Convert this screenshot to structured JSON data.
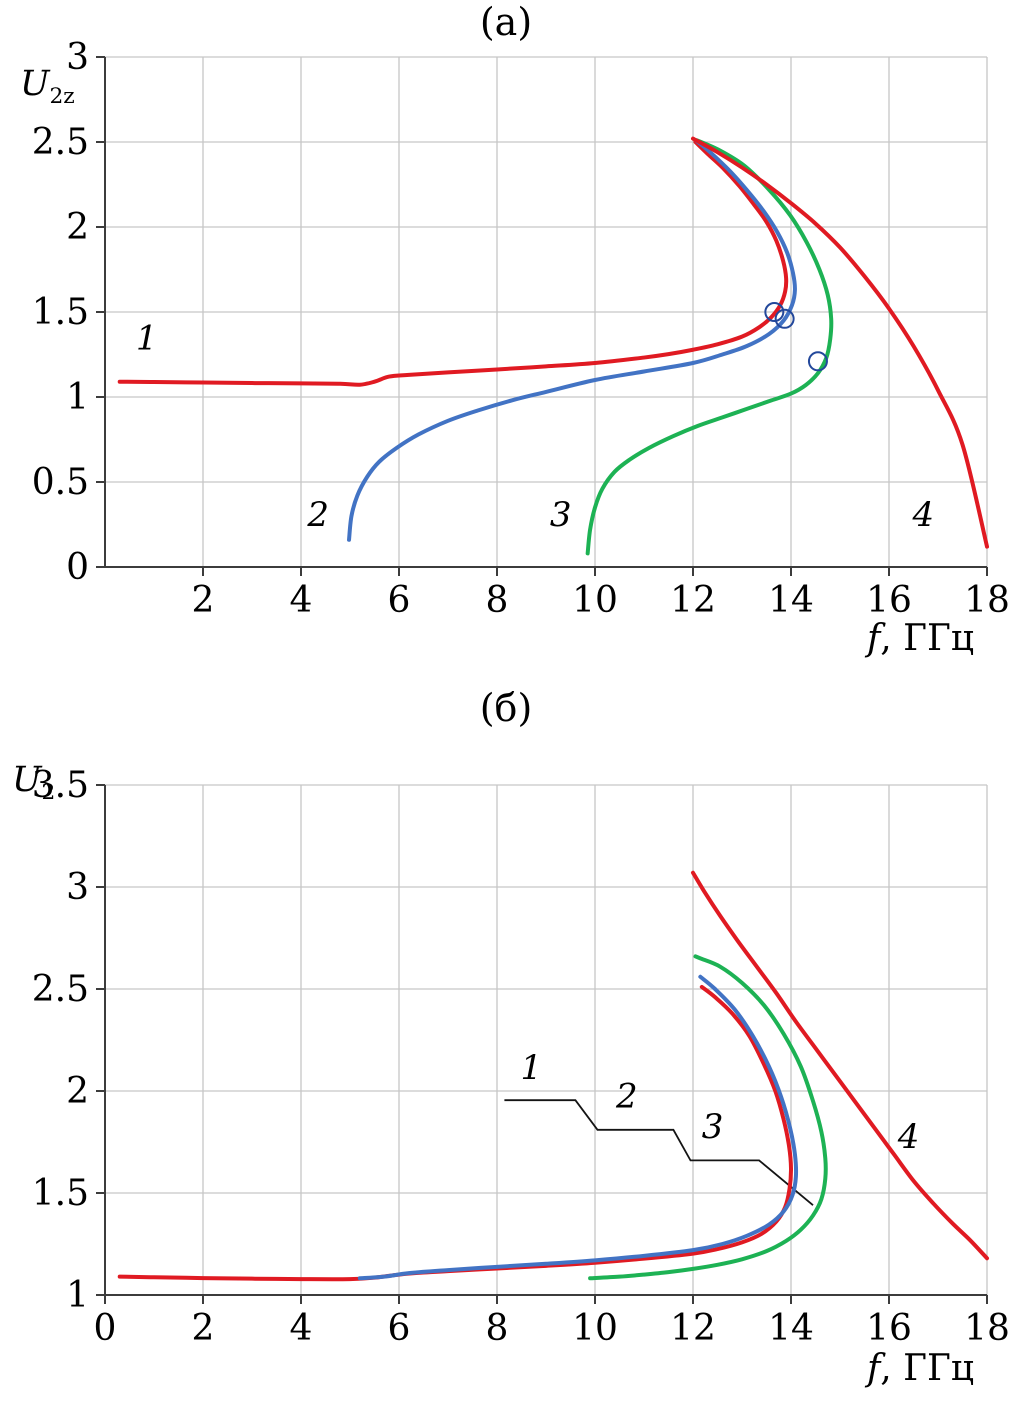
{
  "colors": {
    "red": "#e01a22",
    "blue": "#4273c4",
    "green": "#1db254",
    "marker": "#23489b",
    "annotation": "#141414",
    "grid": "#c6c6c6",
    "axis": "#3c3c3c",
    "text": "#000000"
  },
  "chart_data": [
    {
      "name": "chart-a",
      "type": "line",
      "title": "(а)",
      "ylabel": {
        "main": "U",
        "sub": "2z"
      },
      "xlabel": {
        "italic": "f",
        "rest": ", ГГц"
      },
      "xlim": [
        0,
        18
      ],
      "ylim": [
        0,
        3
      ],
      "grid": true,
      "xticks": [
        2,
        4,
        6,
        8,
        10,
        12,
        14,
        16,
        18
      ],
      "xtick_labels": [
        "2",
        "4",
        "6",
        "8",
        "10",
        "12",
        "14",
        "16",
        "18"
      ],
      "yticks": [
        0,
        0.5,
        1,
        1.5,
        2,
        2.5,
        3
      ],
      "ytick_labels": [
        "0",
        "0.5",
        "1",
        "1.5",
        "2",
        "2.5",
        "3"
      ],
      "series": [
        {
          "name": "curve-1",
          "label": "1",
          "color": "#e01a22",
          "points": [
            [
              0.3,
              1.09
            ],
            [
              1,
              1.088
            ],
            [
              2,
              1.085
            ],
            [
              3,
              1.082
            ],
            [
              4,
              1.08
            ],
            [
              4.8,
              1.078
            ],
            [
              5.2,
              1.072
            ],
            [
              5.5,
              1.09
            ],
            [
              5.8,
              1.12
            ],
            [
              6.2,
              1.13
            ],
            [
              7,
              1.145
            ],
            [
              8,
              1.162
            ],
            [
              9,
              1.18
            ],
            [
              10,
              1.2
            ],
            [
              11,
              1.232
            ],
            [
              11.5,
              1.252
            ],
            [
              12,
              1.278
            ],
            [
              12.5,
              1.31
            ],
            [
              13,
              1.355
            ],
            [
              13.35,
              1.41
            ],
            [
              13.6,
              1.47
            ],
            [
              13.78,
              1.54
            ],
            [
              13.88,
              1.62
            ],
            [
              13.9,
              1.7
            ],
            [
              13.84,
              1.8
            ],
            [
              13.7,
              1.92
            ],
            [
              13.5,
              2.03
            ],
            [
              13.25,
              2.13
            ],
            [
              12.95,
              2.24
            ],
            [
              12.6,
              2.35
            ],
            [
              12.3,
              2.43
            ],
            [
              12.05,
              2.5
            ]
          ]
        },
        {
          "name": "curve-2",
          "label": "2",
          "color": "#4273c4",
          "points": [
            [
              4.98,
              0.16
            ],
            [
              5.03,
              0.3
            ],
            [
              5.15,
              0.42
            ],
            [
              5.35,
              0.53
            ],
            [
              5.6,
              0.62
            ],
            [
              5.95,
              0.7
            ],
            [
              6.4,
              0.78
            ],
            [
              7,
              0.86
            ],
            [
              7.6,
              0.92
            ],
            [
              8.3,
              0.98
            ],
            [
              9,
              1.03
            ],
            [
              10,
              1.1
            ],
            [
              11,
              1.15
            ],
            [
              12,
              1.2
            ],
            [
              12.6,
              1.25
            ],
            [
              13.1,
              1.3
            ],
            [
              13.55,
              1.37
            ],
            [
              13.85,
              1.45
            ],
            [
              14.02,
              1.54
            ],
            [
              14.08,
              1.63
            ],
            [
              14.04,
              1.73
            ],
            [
              13.92,
              1.85
            ],
            [
              13.72,
              1.97
            ],
            [
              13.45,
              2.09
            ],
            [
              13.12,
              2.21
            ],
            [
              12.75,
              2.33
            ],
            [
              12.35,
              2.44
            ],
            [
              12.06,
              2.51
            ]
          ]
        },
        {
          "name": "curve-3",
          "label": "3",
          "color": "#1db254",
          "points": [
            [
              9.85,
              0.08
            ],
            [
              9.9,
              0.22
            ],
            [
              10.0,
              0.35
            ],
            [
              10.15,
              0.46
            ],
            [
              10.4,
              0.56
            ],
            [
              10.7,
              0.63
            ],
            [
              11.1,
              0.7
            ],
            [
              11.6,
              0.77
            ],
            [
              12.1,
              0.83
            ],
            [
              12.6,
              0.88
            ],
            [
              13.1,
              0.93
            ],
            [
              13.6,
              0.98
            ],
            [
              14,
              1.02
            ],
            [
              14.3,
              1.07
            ],
            [
              14.55,
              1.14
            ],
            [
              14.72,
              1.23
            ],
            [
              14.8,
              1.34
            ],
            [
              14.82,
              1.46
            ],
            [
              14.75,
              1.6
            ],
            [
              14.58,
              1.75
            ],
            [
              14.32,
              1.91
            ],
            [
              13.98,
              2.07
            ],
            [
              13.55,
              2.22
            ],
            [
              13.05,
              2.36
            ],
            [
              12.55,
              2.45
            ],
            [
              12.08,
              2.51
            ]
          ]
        },
        {
          "name": "curve-4",
          "label": "4",
          "color": "#e01a22",
          "points": [
            [
              12.0,
              2.52
            ],
            [
              12.5,
              2.44
            ],
            [
              13,
              2.35
            ],
            [
              13.5,
              2.25
            ],
            [
              14,
              2.14
            ],
            [
              14.5,
              2.02
            ],
            [
              15,
              1.88
            ],
            [
              15.5,
              1.71
            ],
            [
              16,
              1.52
            ],
            [
              16.5,
              1.3
            ],
            [
              17,
              1.04
            ],
            [
              17.5,
              0.72
            ],
            [
              18,
              0.12
            ]
          ]
        }
      ],
      "markers": [
        {
          "x": 13.66,
          "y": 1.5,
          "r": 9
        },
        {
          "x": 13.87,
          "y": 1.46,
          "r": 9
        },
        {
          "x": 14.55,
          "y": 1.21,
          "r": 9
        }
      ],
      "curve_labels": [
        {
          "text": "1",
          "x": 0.85,
          "y": 1.28
        },
        {
          "text": "2",
          "x": 4.35,
          "y": 0.24
        },
        {
          "text": "3",
          "x": 9.3,
          "y": 0.24
        },
        {
          "text": "4",
          "x": 16.7,
          "y": 0.24
        }
      ],
      "annotation_lines": []
    },
    {
      "name": "chart-b",
      "type": "line",
      "title": "(б)",
      "ylabel": {
        "main": "U",
        "sub": "2"
      },
      "xlabel": {
        "italic": "f",
        "rest": ", ГГц"
      },
      "xlim": [
        0,
        18
      ],
      "ylim": [
        1,
        3.5
      ],
      "grid": true,
      "xticks": [
        0,
        2,
        4,
        6,
        8,
        10,
        12,
        14,
        16,
        18
      ],
      "xtick_labels": [
        "0",
        "2",
        "4",
        "6",
        "8",
        "10",
        "12",
        "14",
        "16",
        "18"
      ],
      "yticks": [
        1,
        1.5,
        2,
        2.5,
        3,
        3.5
      ],
      "ytick_labels": [
        "1",
        "1.5",
        "2",
        "2.5",
        "3",
        "3.5"
      ],
      "series": [
        {
          "name": "curve-1",
          "label": "1",
          "color": "#e01a22",
          "points": [
            [
              0.3,
              1.09
            ],
            [
              1,
              1.087
            ],
            [
              2,
              1.083
            ],
            [
              3,
              1.08
            ],
            [
              4,
              1.078
            ],
            [
              5,
              1.078
            ],
            [
              5.5,
              1.085
            ],
            [
              6,
              1.1
            ],
            [
              6.5,
              1.11
            ],
            [
              7,
              1.117
            ],
            [
              8,
              1.13
            ],
            [
              9,
              1.143
            ],
            [
              10,
              1.158
            ],
            [
              11,
              1.178
            ],
            [
              12,
              1.203
            ],
            [
              12.5,
              1.225
            ],
            [
              13,
              1.258
            ],
            [
              13.4,
              1.3
            ],
            [
              13.7,
              1.36
            ],
            [
              13.88,
              1.43
            ],
            [
              13.97,
              1.52
            ],
            [
              14.0,
              1.62
            ],
            [
              13.96,
              1.73
            ],
            [
              13.85,
              1.86
            ],
            [
              13.68,
              2.0
            ],
            [
              13.45,
              2.13
            ],
            [
              13.15,
              2.27
            ],
            [
              12.8,
              2.38
            ],
            [
              12.45,
              2.46
            ],
            [
              12.18,
              2.51
            ]
          ]
        },
        {
          "name": "curve-2",
          "label": "2",
          "color": "#4273c4",
          "points": [
            [
              5.2,
              1.082
            ],
            [
              5.7,
              1.09
            ],
            [
              6.2,
              1.107
            ],
            [
              7,
              1.122
            ],
            [
              8,
              1.138
            ],
            [
              9,
              1.153
            ],
            [
              10,
              1.17
            ],
            [
              11,
              1.192
            ],
            [
              12,
              1.22
            ],
            [
              12.6,
              1.25
            ],
            [
              13.1,
              1.29
            ],
            [
              13.55,
              1.345
            ],
            [
              13.85,
              1.41
            ],
            [
              14.03,
              1.49
            ],
            [
              14.1,
              1.58
            ],
            [
              14.08,
              1.69
            ],
            [
              13.98,
              1.82
            ],
            [
              13.8,
              1.97
            ],
            [
              13.55,
              2.12
            ],
            [
              13.22,
              2.27
            ],
            [
              12.85,
              2.4
            ],
            [
              12.45,
              2.5
            ],
            [
              12.15,
              2.56
            ]
          ]
        },
        {
          "name": "curve-3",
          "label": "3",
          "color": "#1db254",
          "points": [
            [
              9.9,
              1.082
            ],
            [
              10.5,
              1.09
            ],
            [
              11,
              1.1
            ],
            [
              11.5,
              1.112
            ],
            [
              12,
              1.128
            ],
            [
              12.5,
              1.148
            ],
            [
              13,
              1.175
            ],
            [
              13.5,
              1.215
            ],
            [
              13.9,
              1.265
            ],
            [
              14.2,
              1.32
            ],
            [
              14.45,
              1.39
            ],
            [
              14.62,
              1.47
            ],
            [
              14.7,
              1.57
            ],
            [
              14.7,
              1.67
            ],
            [
              14.62,
              1.8
            ],
            [
              14.45,
              1.95
            ],
            [
              14.2,
              2.12
            ],
            [
              13.85,
              2.28
            ],
            [
              13.45,
              2.42
            ],
            [
              13.0,
              2.53
            ],
            [
              12.55,
              2.61
            ],
            [
              12.15,
              2.65
            ],
            [
              12.05,
              2.66
            ]
          ]
        },
        {
          "name": "curve-4",
          "label": "4",
          "color": "#e01a22",
          "points": [
            [
              12.0,
              3.07
            ],
            [
              12.25,
              2.97
            ],
            [
              12.55,
              2.86
            ],
            [
              12.9,
              2.74
            ],
            [
              13.3,
              2.61
            ],
            [
              13.7,
              2.48
            ],
            [
              14.1,
              2.34
            ],
            [
              14.5,
              2.21
            ],
            [
              14.9,
              2.08
            ],
            [
              15.3,
              1.95
            ],
            [
              15.7,
              1.82
            ],
            [
              16.1,
              1.69
            ],
            [
              16.5,
              1.56
            ],
            [
              16.9,
              1.45
            ],
            [
              17.3,
              1.35
            ],
            [
              17.65,
              1.27
            ],
            [
              18.0,
              1.18
            ]
          ]
        }
      ],
      "markers": [],
      "curve_labels": [
        {
          "text": "1",
          "x": 8.7,
          "y": 2.06
        },
        {
          "text": "2",
          "x": 10.65,
          "y": 1.92
        },
        {
          "text": "3",
          "x": 12.4,
          "y": 1.77
        },
        {
          "text": "4",
          "x": 16.4,
          "y": 1.72
        }
      ],
      "annotation_lines": [
        {
          "points": [
            [
              8.15,
              1.955
            ],
            [
              9.6,
              1.955
            ],
            [
              10.05,
              1.81
            ],
            [
              11.6,
              1.81
            ],
            [
              11.95,
              1.66
            ],
            [
              13.35,
              1.66
            ],
            [
              14.45,
              1.44
            ]
          ]
        }
      ]
    }
  ]
}
